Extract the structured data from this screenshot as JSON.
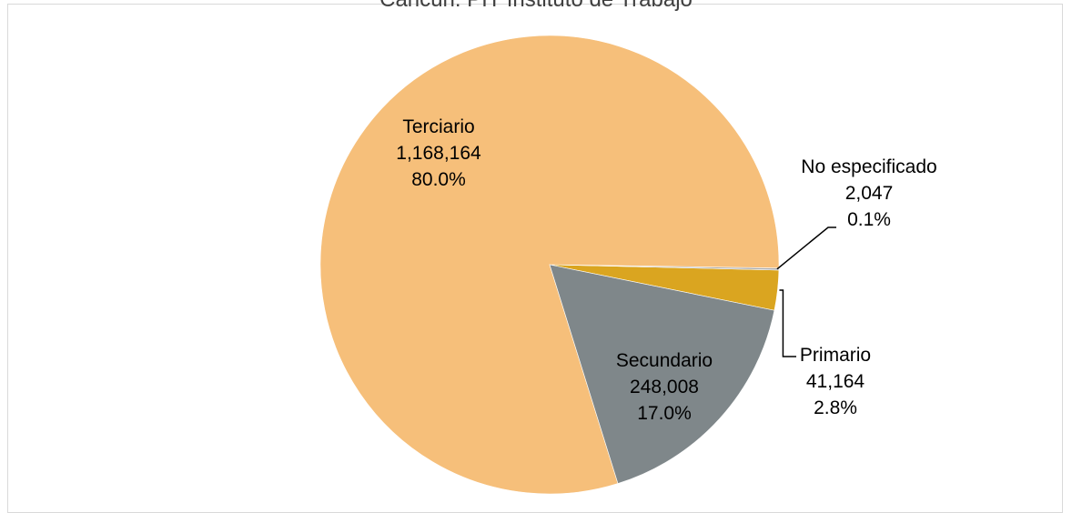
{
  "chart_data": {
    "type": "pie",
    "title": "Cancún: PIT Instituto de Trabajo",
    "slices": [
      {
        "name": "Primario",
        "value": 41164,
        "percent": "2.8%",
        "value_label": "41,164",
        "color": "#DAA520"
      },
      {
        "name": "No especificado",
        "value": 2047,
        "percent": "0.1%",
        "value_label": "2,047",
        "color": "#A9A9A9"
      },
      {
        "name": "Terciario",
        "value": 1168164,
        "percent": "80.0%",
        "value_label": "1,168,164",
        "color": "#F6BF7A"
      },
      {
        "name": "Secundario",
        "value": 248008,
        "percent": "17.0%",
        "value_label": "248,008",
        "color": "#7F878A"
      }
    ]
  }
}
